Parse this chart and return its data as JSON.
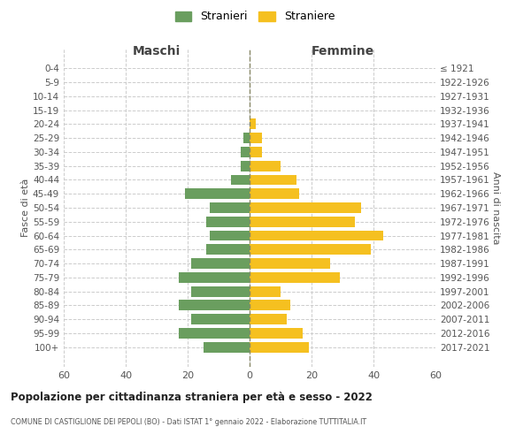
{
  "age_groups": [
    "100+",
    "95-99",
    "90-94",
    "85-89",
    "80-84",
    "75-79",
    "70-74",
    "65-69",
    "60-64",
    "55-59",
    "50-54",
    "45-49",
    "40-44",
    "35-39",
    "30-34",
    "25-29",
    "20-24",
    "15-19",
    "10-14",
    "5-9",
    "0-4"
  ],
  "birth_years": [
    "≤ 1921",
    "1922-1926",
    "1927-1931",
    "1932-1936",
    "1937-1941",
    "1942-1946",
    "1947-1951",
    "1952-1956",
    "1957-1961",
    "1962-1966",
    "1967-1971",
    "1972-1976",
    "1977-1981",
    "1982-1986",
    "1987-1991",
    "1992-1996",
    "1997-2001",
    "2002-2006",
    "2007-2011",
    "2012-2016",
    "2017-2021"
  ],
  "maschi": [
    0,
    0,
    0,
    0,
    0,
    2,
    3,
    3,
    6,
    21,
    13,
    14,
    13,
    14,
    19,
    23,
    19,
    23,
    19,
    23,
    15
  ],
  "femmine": [
    0,
    0,
    0,
    0,
    2,
    4,
    4,
    10,
    15,
    16,
    36,
    34,
    43,
    39,
    26,
    29,
    10,
    13,
    12,
    17,
    19
  ],
  "color_maschi": "#6a9e5f",
  "color_femmine": "#f5c020",
  "title": "Popolazione per cittadinanza straniera per età e sesso - 2022",
  "subtitle": "COMUNE DI CASTIGLIONE DEI PEPOLI (BO) - Dati ISTAT 1° gennaio 2022 - Elaborazione TUTTITALIA.IT",
  "left_label": "Maschi",
  "right_label": "Femmine",
  "ylabel_left": "Fasce di età",
  "ylabel_right": "Anni di nascita",
  "legend_stranieri": "Stranieri",
  "legend_straniere": "Straniere",
  "xlim": 60,
  "background_color": "#ffffff",
  "grid_color": "#cccccc"
}
